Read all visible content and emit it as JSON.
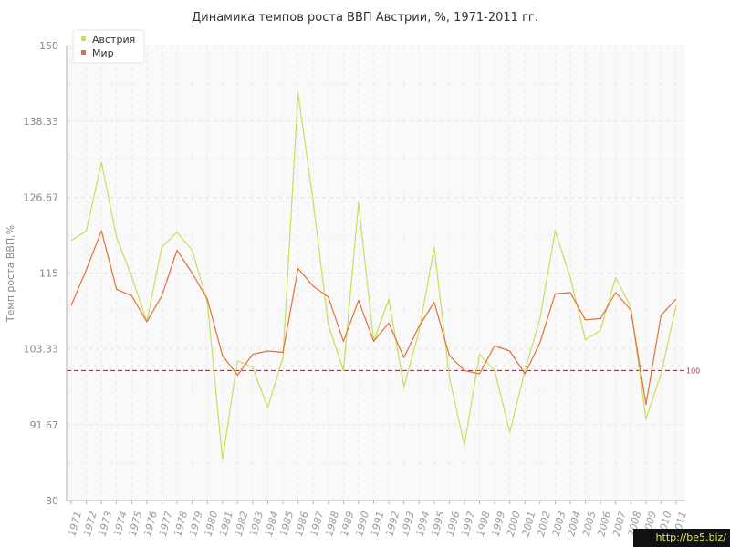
{
  "chart_data": {
    "type": "line",
    "title": "Динамика темпов роста ВВП Австрии, %, 1971-2011 гг.",
    "ylabel": "Темп роста ВВП,%",
    "xlabel": "",
    "ylim": [
      80,
      150
    ],
    "yticks": [
      "80",
      "91.67",
      "103.33",
      "115",
      "126.67",
      "138.33",
      "150"
    ],
    "categories": [
      "1971",
      "1972",
      "1973",
      "1974",
      "1975",
      "1976",
      "1977",
      "1978",
      "1979",
      "1980",
      "1981",
      "1982",
      "1983",
      "1984",
      "1985",
      "1986",
      "1987",
      "1988",
      "1989",
      "1990",
      "1991",
      "1992",
      "1993",
      "1994",
      "1995",
      "1996",
      "1997",
      "1998",
      "1999",
      "2000",
      "2001",
      "2002",
      "2003",
      "2004",
      "2005",
      "2006",
      "2007",
      "2008",
      "2009",
      "2010",
      "2011"
    ],
    "series": [
      {
        "name": "Австрия",
        "color": "#c8dd5c",
        "values": [
          120.0,
          121.5,
          132.0,
          120.5,
          114.5,
          107.5,
          119.0,
          121.3,
          118.5,
          110.5,
          86.3,
          101.5,
          100.5,
          94.3,
          102.0,
          142.7,
          126.0,
          107.0,
          100.0,
          125.8,
          104.5,
          111.0,
          97.5,
          106.0,
          119.0,
          99.0,
          88.5,
          102.5,
          100.0,
          90.5,
          100.0,
          108.0,
          121.5,
          114.3,
          104.7,
          106.2,
          114.3,
          109.8,
          92.5,
          99.5,
          110.0
        ]
      },
      {
        "name": "Мир",
        "color": "#e0703a",
        "values": [
          110.0,
          115.5,
          121.5,
          112.5,
          111.5,
          107.5,
          111.5,
          118.5,
          115.0,
          111.0,
          102.3,
          99.3,
          102.5,
          103.0,
          102.8,
          115.7,
          113.0,
          111.3,
          104.5,
          110.8,
          104.5,
          107.3,
          102.0,
          106.8,
          110.5,
          102.3,
          100.0,
          99.5,
          103.8,
          103.0,
          99.5,
          104.3,
          111.8,
          112.0,
          107.8,
          108.0,
          112.0,
          109.3,
          94.8,
          108.5,
          111.0
        ]
      }
    ],
    "reference_line": {
      "value": 100,
      "label": "100",
      "color": "#9a3a4a"
    },
    "legend_position": "top-left",
    "grid": true
  },
  "watermark": "http://be5.biz/"
}
